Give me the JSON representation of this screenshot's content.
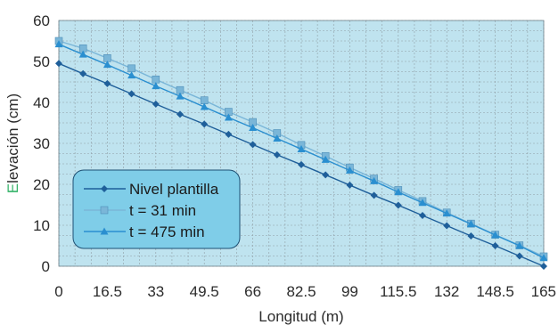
{
  "colors": {
    "plot_bg": "#bfe3ef",
    "grid": "#8f9ea6",
    "axis_text": "#2b2b2b",
    "ylabel_accent": "#36b36a",
    "legend_bg": "#7fcde8",
    "legend_border": "#1d4f73"
  },
  "chart_data": {
    "type": "line",
    "x": [
      0,
      8.25,
      16.5,
      24.75,
      33,
      41.25,
      49.5,
      57.75,
      66,
      74.25,
      82.5,
      90.75,
      99,
      107.25,
      115.5,
      123.75,
      132,
      140.25,
      148.5,
      156.75,
      165
    ],
    "xticks": [
      0,
      16.5,
      33,
      49.5,
      66,
      82.5,
      99,
      115.5,
      132,
      148.5,
      165
    ],
    "xtick_labels": [
      "0",
      "16.5",
      "33",
      "49.5",
      "66",
      "82.5",
      "99",
      "115.5",
      "132",
      "148.5",
      "165"
    ],
    "yticks": [
      0,
      10,
      20,
      30,
      40,
      50,
      60
    ],
    "ytick_labels": [
      "0",
      "10",
      "20",
      "30",
      "40",
      "50",
      "60"
    ],
    "xlim": [
      0,
      165
    ],
    "ylim": [
      0,
      60
    ],
    "xlabel": "Longitud (m)",
    "ylabel_first": "E",
    "ylabel_rest": "levación (cm)",
    "grid": true,
    "legend_position": "bottom-left",
    "series": [
      {
        "name": "Nivel plantilla",
        "color": "#1f5f9a",
        "marker": "diamond",
        "values": [
          49.5,
          47.0,
          44.6,
          42.1,
          39.6,
          37.1,
          34.7,
          32.2,
          29.7,
          27.2,
          24.8,
          22.3,
          19.8,
          17.3,
          14.9,
          12.4,
          9.9,
          7.4,
          5.0,
          2.5,
          0
        ]
      },
      {
        "name": "t = 31 min",
        "color": "#7ab6d8",
        "marker": "square",
        "values": [
          55.0,
          53.2,
          50.8,
          48.3,
          45.6,
          43.0,
          40.5,
          37.7,
          35.2,
          32.5,
          29.6,
          26.9,
          24.1,
          21.4,
          18.6,
          15.9,
          13.1,
          10.4,
          7.7,
          5.1,
          2.4
        ]
      },
      {
        "name": "t = 475 min",
        "color": "#2a8fd0",
        "marker": "triangle",
        "values": [
          54.2,
          51.7,
          49.2,
          46.6,
          44.0,
          41.5,
          38.9,
          36.3,
          33.8,
          31.2,
          28.6,
          26.0,
          23.4,
          20.8,
          18.1,
          15.5,
          12.9,
          10.3,
          7.6,
          5.0,
          2.0
        ]
      }
    ]
  }
}
